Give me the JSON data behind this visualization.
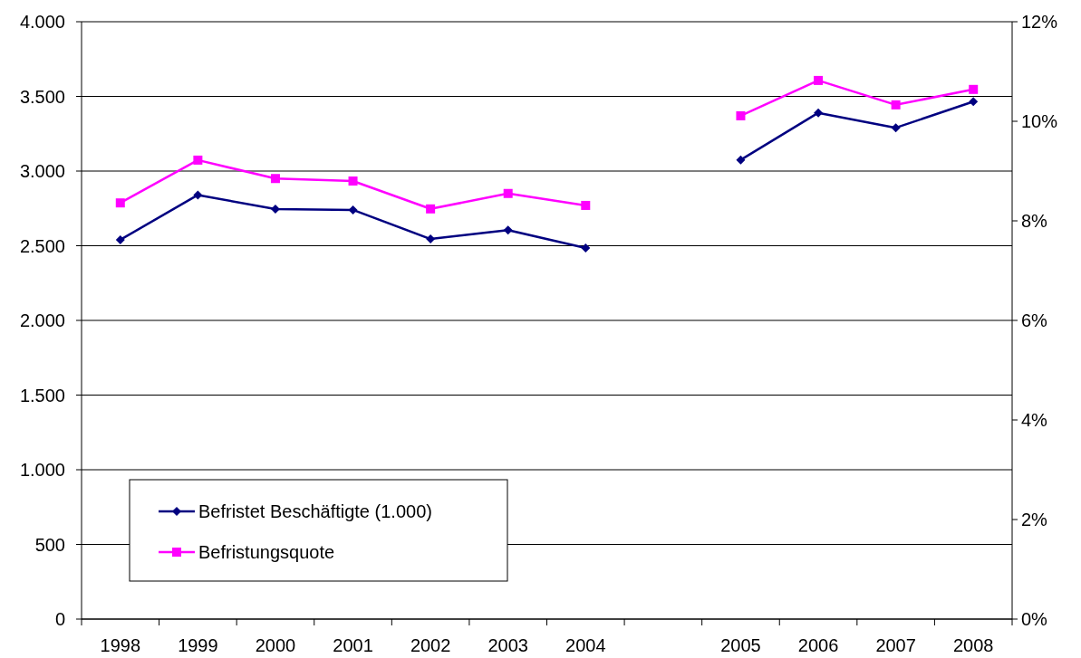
{
  "chart_data": {
    "type": "line",
    "categories": [
      "1998",
      "1999",
      "2000",
      "2001",
      "2002",
      "2003",
      "2004",
      null,
      "2005",
      "2006",
      "2007",
      "2008"
    ],
    "series": [
      {
        "name": "Befristet Beschäftigte (1.000)",
        "color": "#000080",
        "marker": "diamond",
        "values": [
          2540,
          2840,
          2745,
          2740,
          2545,
          2605,
          2485,
          null,
          3075,
          3390,
          3290,
          3465
        ]
      },
      {
        "name": "Befristungsquote",
        "color": "#ff00ff",
        "marker": "square",
        "axis": "y2",
        "values": [
          8.36,
          9.22,
          8.85,
          8.8,
          8.24,
          8.55,
          8.31,
          null,
          10.11,
          10.82,
          10.33,
          10.64
        ]
      }
    ],
    "ylim": [
      0,
      4000
    ],
    "yticks": [
      {
        "value": 0,
        "label": "0"
      },
      {
        "value": 500,
        "label": "500"
      },
      {
        "value": 1000,
        "label": "1.000"
      },
      {
        "value": 1500,
        "label": "1.500"
      },
      {
        "value": 2000,
        "label": "2.000"
      },
      {
        "value": 2500,
        "label": "2.500"
      },
      {
        "value": 3000,
        "label": "3.000"
      },
      {
        "value": 3500,
        "label": "3.500"
      },
      {
        "value": 4000,
        "label": "4.000"
      }
    ],
    "y2lim": [
      0,
      12
    ],
    "y2ticks": [
      {
        "value": 0,
        "label": "0%"
      },
      {
        "value": 2,
        "label": "2%"
      },
      {
        "value": 4,
        "label": "4%"
      },
      {
        "value": 6,
        "label": "6%"
      },
      {
        "value": 8,
        "label": "8%"
      },
      {
        "value": 10,
        "label": "10%"
      },
      {
        "value": 12,
        "label": "12%"
      }
    ],
    "grid": "y",
    "legend": "bottom left"
  }
}
